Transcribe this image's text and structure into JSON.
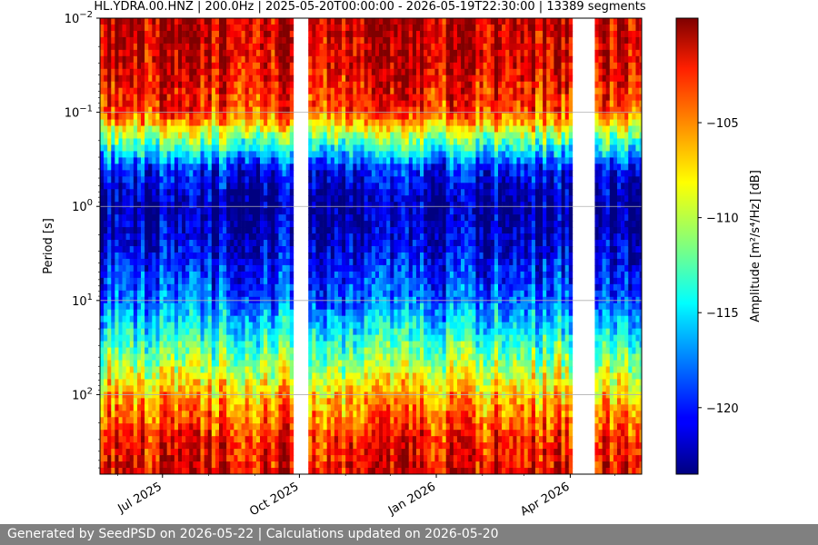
{
  "chart_data": {
    "type": "heatmap",
    "title": "HL.YDRA.00.HNZ | 200.0Hz | 2025-05-20T00:00:00 - 2026-05-19T22:30:00 | 13389 segments",
    "xlabel": "",
    "ylabel": "Period [s]",
    "x_range": [
      "2025-05-20",
      "2026-05-19"
    ],
    "x_ticks": [
      {
        "date": "2025-07-01",
        "label": "Jul 2025"
      },
      {
        "date": "2025-10-01",
        "label": "Oct 2025"
      },
      {
        "date": "2026-01-01",
        "label": "Jan 2026"
      },
      {
        "date": "2026-04-01",
        "label": "Apr 2026"
      }
    ],
    "y_scale": "log",
    "y_inverted": true,
    "y_range": [
      0.01,
      700
    ],
    "y_ticks": [
      {
        "value": 0.01,
        "base": "10",
        "exp": "−2"
      },
      {
        "value": 0.1,
        "base": "10",
        "exp": "−1"
      },
      {
        "value": 1,
        "base": "10",
        "exp": "0"
      },
      {
        "value": 10,
        "base": "10",
        "exp": "1"
      },
      {
        "value": 100,
        "base": "10",
        "exp": "2"
      }
    ],
    "grid": true,
    "colormap": "jet",
    "colorbar": {
      "range": [
        -123.5,
        -99.5
      ],
      "ticks": [
        -105,
        -110,
        -115,
        -120
      ],
      "tick_labels": [
        "−105",
        "−110",
        "−115",
        "−120"
      ],
      "label": "Amplitude [m²/s⁴/Hz] [dB]"
    },
    "data_gaps": [
      [
        "2025-09-25",
        "2025-10-01"
      ],
      [
        "2025-10-02",
        "2025-10-05"
      ],
      [
        "2026-04-01",
        "2026-04-16"
      ]
    ],
    "amplitude_profile_db": [
      {
        "period": 0.01,
        "amplitude": -101
      },
      {
        "period": 0.03,
        "amplitude": -101.5
      },
      {
        "period": 0.1,
        "amplitude": -104
      },
      {
        "period": 0.2,
        "amplitude": -112
      },
      {
        "period": 0.4,
        "amplitude": -120
      },
      {
        "period": 1,
        "amplitude": -123
      },
      {
        "period": 3,
        "amplitude": -121
      },
      {
        "period": 10,
        "amplitude": -118
      },
      {
        "period": 30,
        "amplitude": -113
      },
      {
        "period": 100,
        "amplitude": -107
      },
      {
        "period": 300,
        "amplitude": -103
      },
      {
        "period": 700,
        "amplitude": -102
      }
    ]
  },
  "footer": {
    "text": "Generated by SeedPSD on 2026-05-22 | Calculations updated on 2026-05-20"
  }
}
